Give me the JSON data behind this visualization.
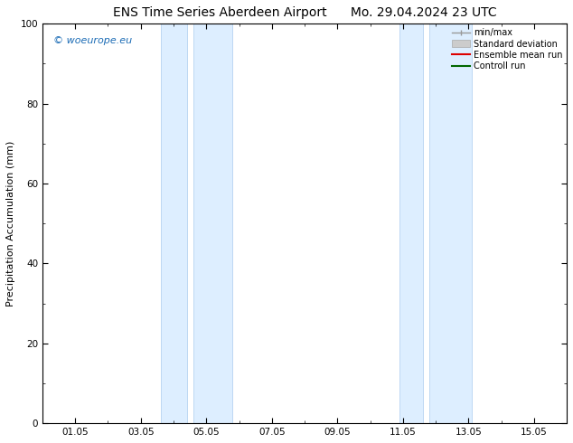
{
  "title_left": "ENS Time Series Aberdeen Airport",
  "title_right": "Mo. 29.04.2024 23 UTC",
  "ylabel": "Precipitation Accumulation (mm)",
  "ylim": [
    0,
    100
  ],
  "yticks": [
    0,
    20,
    40,
    60,
    80,
    100
  ],
  "xtick_labels": [
    "01.05",
    "03.05",
    "05.05",
    "07.05",
    "09.05",
    "11.05",
    "13.05",
    "15.05"
  ],
  "xtick_positions": [
    1,
    3,
    5,
    7,
    9,
    11,
    13,
    15
  ],
  "xlim": [
    0,
    16
  ],
  "shaded_bands": [
    {
      "x_start": 3.6,
      "x_end": 4.4,
      "x_start2": 4.6,
      "x_end2": 5.8
    },
    {
      "x_start": 10.9,
      "x_end": 11.6,
      "x_start2": 11.8,
      "x_end2": 13.1
    }
  ],
  "band_color": "#ddeeff",
  "band_edge_color": "#aaccee",
  "background_color": "#ffffff",
  "watermark_text": "© woeurope.eu",
  "watermark_color": "#1a6bb5",
  "title_fontsize": 10,
  "axis_fontsize": 8,
  "tick_fontsize": 7.5,
  "legend_fontsize": 7,
  "watermark_fontsize": 8
}
